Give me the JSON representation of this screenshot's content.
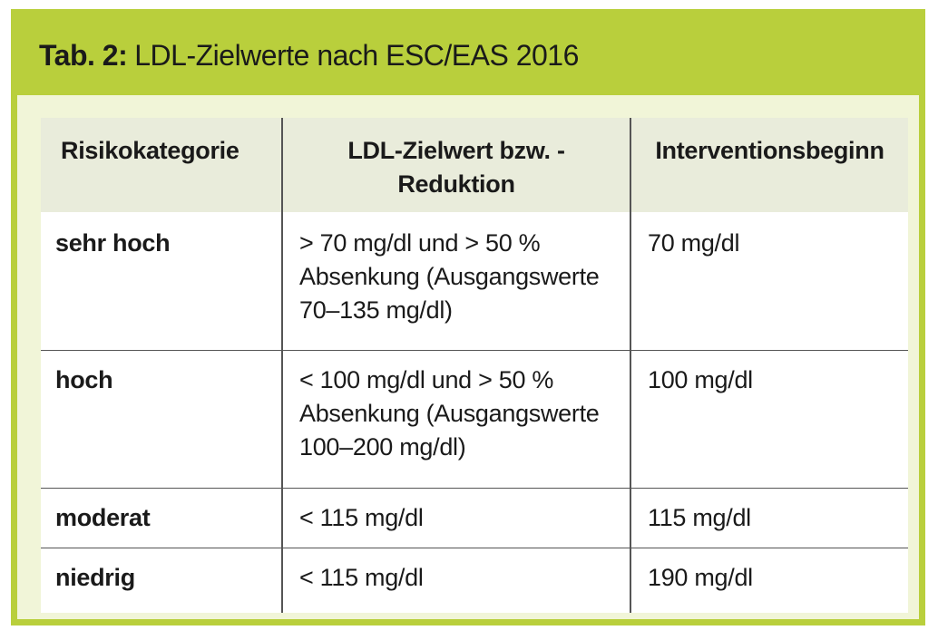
{
  "title": {
    "prefix": "Tab. 2:",
    "text": "LDL-Zielwerte nach ESC/EAS 2016"
  },
  "table": {
    "headers": {
      "risk": "Risikokategorie",
      "target": "LDL-Zielwert bzw. -Reduktion",
      "start": "Interventionsbeginn"
    },
    "rows": [
      {
        "risk": "sehr hoch",
        "target": "> 70 mg/dl und > 50 % Absenkung (Ausgangswerte 70–135 mg/dl)",
        "start": "70 mg/dl"
      },
      {
        "risk": "hoch",
        "target": "< 100 mg/dl und > 50 % Absenkung (Ausgangswerte 100–200 mg/dl)",
        "start": "100 mg/dl"
      },
      {
        "risk": "moderat",
        "target": "< 115 mg/dl",
        "start": "115 mg/dl"
      },
      {
        "risk": "niedrig",
        "target": "< 115 mg/dl",
        "start": "190 mg/dl"
      }
    ]
  },
  "colors": {
    "accent_green": "#b9cf3c",
    "panel_background": "#f1f5d8",
    "header_background": "#e9ecdb"
  }
}
